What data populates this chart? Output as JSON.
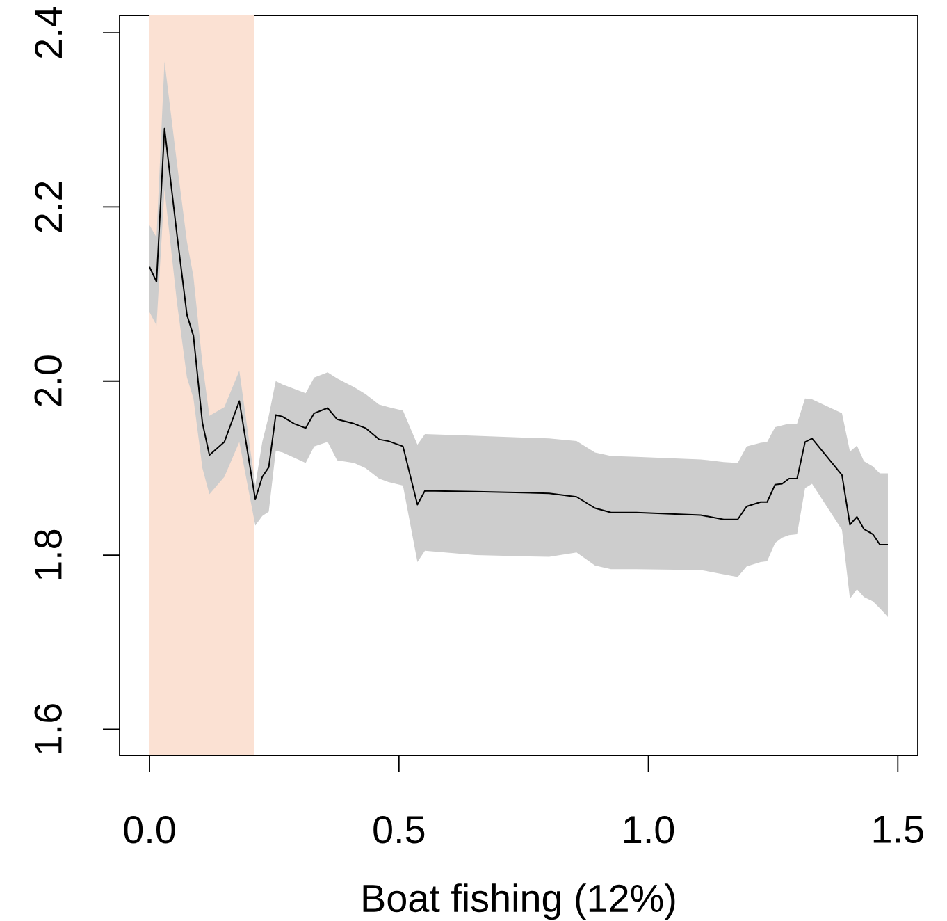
{
  "chart_data": {
    "type": "line",
    "xlabel": "Boat fishing (12%)",
    "xlim": [
      -0.06,
      1.54
    ],
    "ylim": [
      1.57,
      2.42
    ],
    "xticks": [
      {
        "value": 0,
        "label": "0.0"
      },
      0.5,
      {
        "value": 1,
        "label": "1.0"
      },
      1.5
    ],
    "yticks": [
      1.6,
      1.8,
      {
        "value": 2,
        "label": "2.0"
      },
      2.2,
      2.4
    ],
    "bands": [
      {
        "axis": "x",
        "from": 0,
        "to": 0.21,
        "color": "#fbe1d3"
      }
    ],
    "series": [
      {
        "color": "#000000",
        "x": [
          0,
          0.014,
          0.03,
          0.055,
          0.075,
          0.088,
          0.106,
          0.12,
          0.15,
          0.18,
          0.212,
          0.226,
          0.239,
          0.253,
          0.267,
          0.29,
          0.313,
          0.33,
          0.357,
          0.376,
          0.41,
          0.433,
          0.46,
          0.479,
          0.508,
          0.537,
          0.552,
          0.654,
          0.801,
          0.856,
          0.893,
          0.925,
          0.976,
          1.105,
          1.151,
          1.179,
          1.197,
          1.225,
          1.238,
          1.254,
          1.268,
          1.282,
          1.298,
          1.314,
          1.328,
          1.388,
          1.404,
          1.418,
          1.432,
          1.45,
          1.464,
          1.48
        ],
        "values": [
          2.131,
          2.114,
          2.29,
          2.168,
          2.076,
          2.052,
          1.952,
          1.915,
          1.93,
          1.977,
          1.864,
          1.89,
          1.901,
          1.961,
          1.959,
          1.951,
          1.946,
          1.963,
          1.969,
          1.956,
          1.951,
          1.946,
          1.933,
          1.931,
          1.925,
          1.858,
          1.874,
          1.873,
          1.871,
          1.867,
          1.854,
          1.849,
          1.849,
          1.846,
          1.841,
          1.841,
          1.856,
          1.861,
          1.861,
          1.881,
          1.882,
          1.888,
          1.888,
          1.93,
          1.934,
          1.892,
          1.835,
          1.844,
          1.83,
          1.824,
          1.812,
          1.812
        ],
        "lower": [
          2.079,
          2.064,
          2.22,
          2.09,
          2.004,
          1.98,
          1.9,
          1.87,
          1.89,
          1.93,
          1.834,
          1.845,
          1.85,
          1.92,
          1.918,
          1.912,
          1.906,
          1.925,
          1.93,
          1.909,
          1.906,
          1.9,
          1.888,
          1.884,
          1.88,
          1.792,
          1.805,
          1.8,
          1.798,
          1.803,
          1.788,
          1.784,
          1.784,
          1.783,
          1.778,
          1.775,
          1.787,
          1.792,
          1.793,
          1.814,
          1.82,
          1.823,
          1.824,
          1.877,
          1.882,
          1.829,
          1.75,
          1.761,
          1.752,
          1.747,
          1.739,
          1.729
        ],
        "upper": [
          2.179,
          2.165,
          2.367,
          2.25,
          2.16,
          2.12,
          2.02,
          1.96,
          1.97,
          2.012,
          1.88,
          1.93,
          1.96,
          2.0,
          1.996,
          1.991,
          1.986,
          2.004,
          2.01,
          2.003,
          1.993,
          1.985,
          1.973,
          1.97,
          1.966,
          1.927,
          1.939,
          1.937,
          1.934,
          1.931,
          1.918,
          1.914,
          1.913,
          1.91,
          1.907,
          1.906,
          1.925,
          1.929,
          1.93,
          1.947,
          1.949,
          1.951,
          1.951,
          1.98,
          1.979,
          1.963,
          1.919,
          1.926,
          1.908,
          1.902,
          1.894,
          1.894
        ]
      }
    ]
  }
}
